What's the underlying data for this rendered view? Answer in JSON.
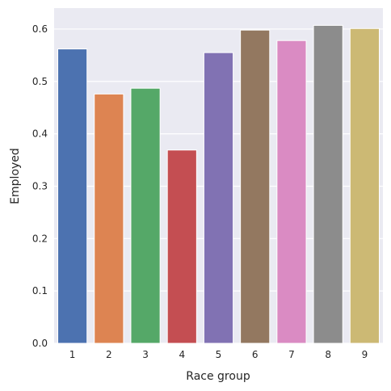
{
  "chart_data": {
    "type": "bar",
    "title": "",
    "xlabel": "Race group",
    "ylabel": "Employed",
    "categories": [
      "1",
      "2",
      "3",
      "4",
      "5",
      "6",
      "7",
      "8",
      "9"
    ],
    "values": [
      0.562,
      0.476,
      0.487,
      0.369,
      0.555,
      0.598,
      0.578,
      0.607,
      0.601
    ],
    "colors": [
      "#4c72b0",
      "#dd8452",
      "#55a868",
      "#c44e52",
      "#8172b3",
      "#937860",
      "#da8bc3",
      "#8c8c8c",
      "#ccb974"
    ],
    "ylim": [
      0,
      0.64
    ],
    "yticks": [
      0.0,
      0.1,
      0.2,
      0.3,
      0.4,
      0.5,
      0.6
    ],
    "ytick_labels": [
      "0.0",
      "0.1",
      "0.2",
      "0.3",
      "0.4",
      "0.5",
      "0.6"
    ],
    "grid": true,
    "background": "#eaeaf2"
  }
}
